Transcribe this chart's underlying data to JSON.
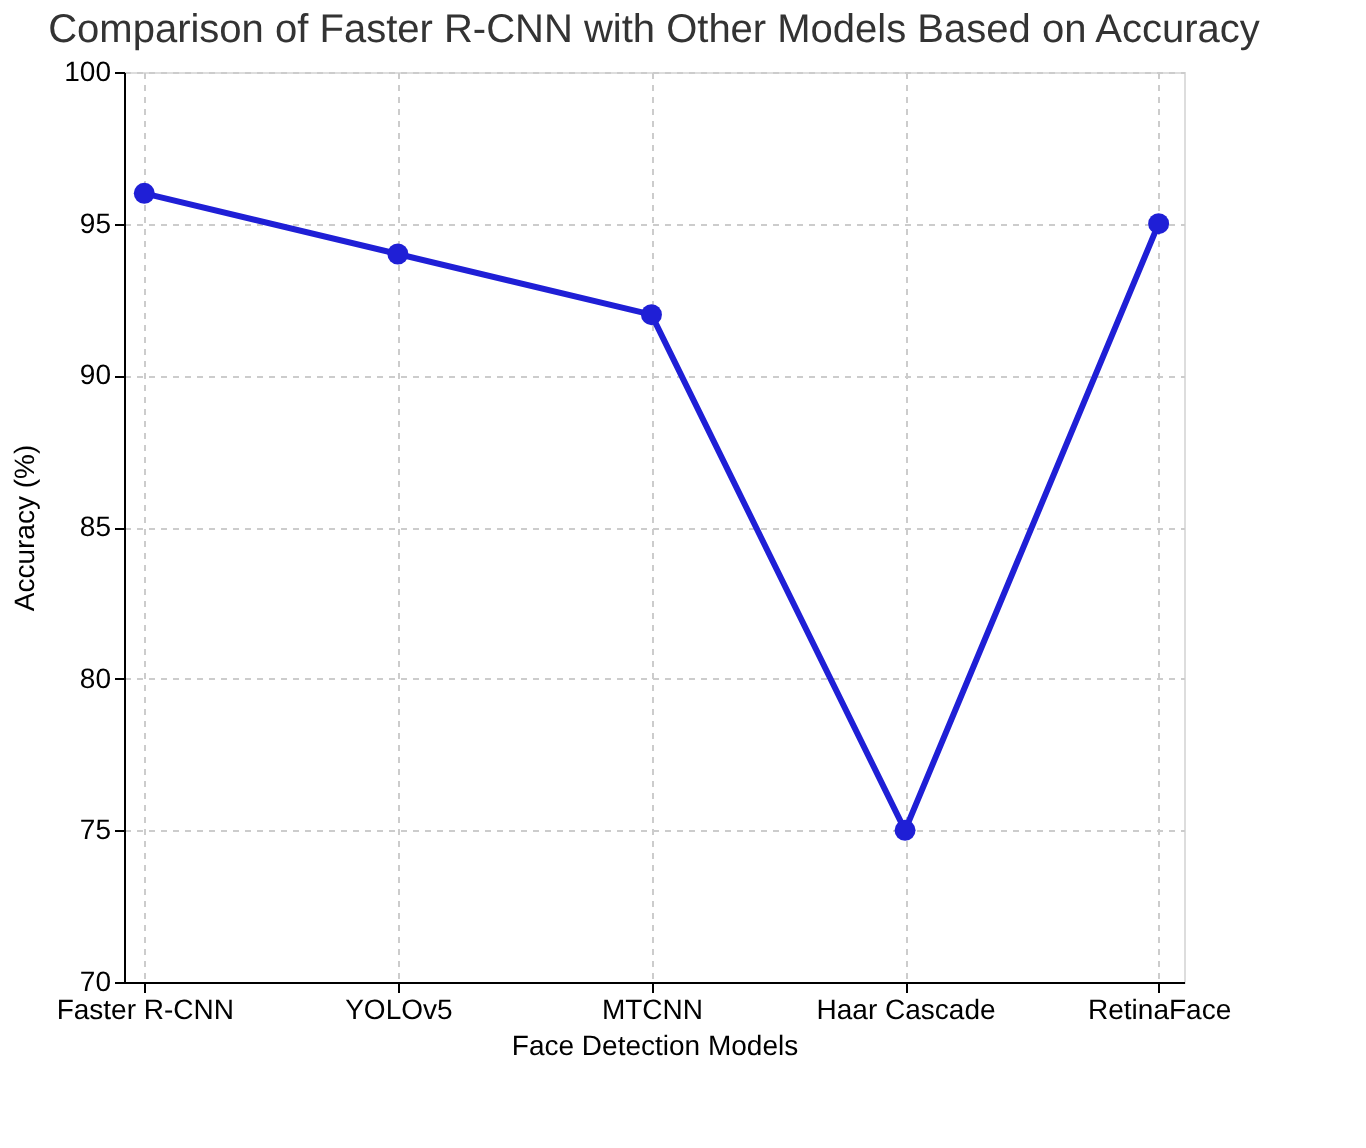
{
  "chart_data": {
    "type": "line",
    "title": "Comparison of Faster R-CNN with Other Models Based on Accuracy",
    "xlabel": "Face Detection Models",
    "ylabel": "Accuracy (%)",
    "categories": [
      "Faster R-CNN",
      "YOLOv5",
      "MTCNN",
      "Haar Cascade",
      "RetinaFace"
    ],
    "series": [
      {
        "color": "#1f1fd6",
        "values": [
          96,
          94,
          92,
          75,
          95
        ]
      }
    ],
    "ylim": [
      70,
      100
    ],
    "yticks": [
      70,
      75,
      80,
      85,
      90,
      95,
      100
    ],
    "grid": true,
    "marker": "circle",
    "line_style": "solid"
  }
}
